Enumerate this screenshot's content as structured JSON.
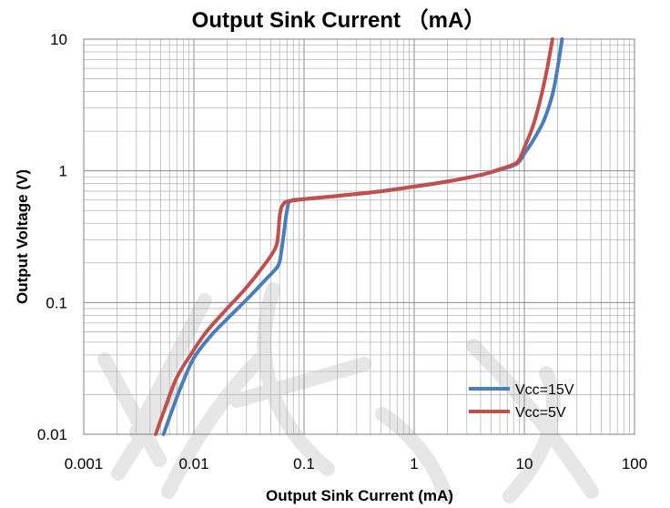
{
  "chart_data": {
    "type": "line",
    "title": "Output Sink Current （mA）",
    "xlabel": "Output Sink Current (mA)",
    "ylabel": "Output  Voltage (V)",
    "x_scale": "log",
    "y_scale": "log",
    "xlim": [
      0.001,
      100
    ],
    "ylim": [
      0.01,
      10
    ],
    "x_ticks": [
      "0.001",
      "0.01",
      "0.1",
      "1",
      "10",
      "100"
    ],
    "y_ticks": [
      "0.01",
      "0.1",
      "1",
      "10"
    ],
    "grid": true,
    "legend_position": "bottom-right",
    "series": [
      {
        "name": "Vcc=15V",
        "color": "#4a7ebb",
        "x": [
          0.0053,
          0.0063,
          0.0078,
          0.01,
          0.014,
          0.02,
          0.03,
          0.045,
          0.058,
          0.062,
          0.066,
          0.07,
          0.075,
          0.1,
          0.2,
          0.5,
          1.0,
          2.0,
          4.0,
          6.0,
          8.0,
          9.0,
          10.0,
          12.0,
          15.0,
          18.0,
          20.0,
          22.0
        ],
        "y": [
          0.01,
          0.015,
          0.024,
          0.038,
          0.055,
          0.075,
          0.105,
          0.15,
          0.19,
          0.24,
          0.35,
          0.5,
          0.59,
          0.61,
          0.645,
          0.7,
          0.76,
          0.83,
          0.93,
          1.02,
          1.1,
          1.18,
          1.35,
          1.7,
          2.4,
          3.8,
          6.0,
          10.0
        ]
      },
      {
        "name": "Vcc=5V",
        "color": "#c0504d",
        "x": [
          0.0045,
          0.0055,
          0.007,
          0.0095,
          0.013,
          0.02,
          0.03,
          0.045,
          0.055,
          0.058,
          0.06,
          0.062,
          0.065,
          0.07,
          0.1,
          0.2,
          0.5,
          1.0,
          2.0,
          4.0,
          6.0,
          8.0,
          9.0,
          10.0,
          12.0,
          14.0,
          16.0,
          18.0
        ],
        "y": [
          0.01,
          0.016,
          0.027,
          0.041,
          0.06,
          0.09,
          0.13,
          0.2,
          0.26,
          0.32,
          0.45,
          0.52,
          0.56,
          0.585,
          0.61,
          0.645,
          0.7,
          0.76,
          0.83,
          0.93,
          1.03,
          1.12,
          1.22,
          1.5,
          2.2,
          3.5,
          5.8,
          10.0
        ]
      }
    ]
  }
}
